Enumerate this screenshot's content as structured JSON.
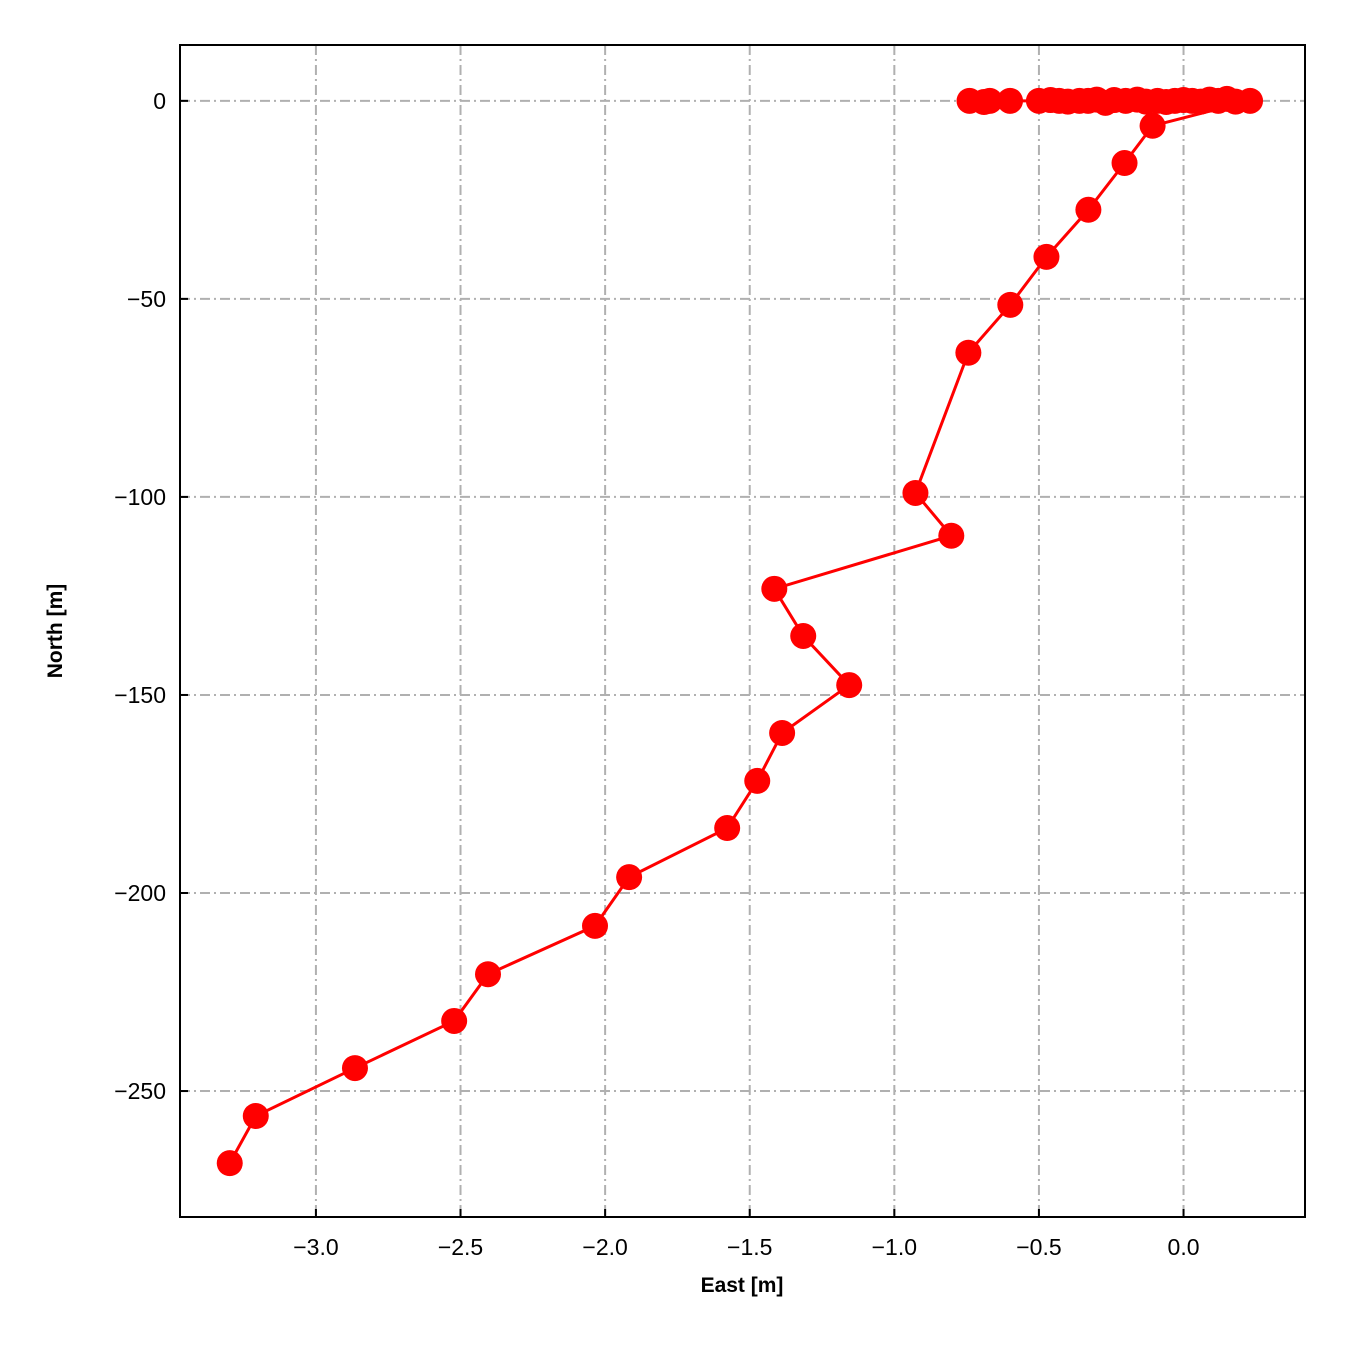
{
  "chart_data": {
    "type": "line",
    "x_label": "East [m]",
    "y_label": "North [m]",
    "x": [
      -0.74,
      -0.69,
      -0.67,
      -0.6,
      -0.5,
      -0.46,
      -0.43,
      -0.4,
      -0.36,
      -0.33,
      -0.3,
      -0.27,
      -0.24,
      -0.2,
      -0.16,
      -0.13,
      -0.09,
      -0.06,
      -0.03,
      0.0,
      0.03,
      0.06,
      0.09,
      0.12,
      0.15,
      0.18,
      0.23,
      -0.107,
      -0.204,
      -0.329,
      -0.474,
      -0.599,
      -0.744,
      -0.927,
      -0.803,
      -1.415,
      -1.315,
      -1.156,
      -1.388,
      -1.474,
      -1.578,
      -1.917,
      -2.035,
      -2.405,
      -2.522,
      -2.865,
      -3.208,
      -3.298
    ],
    "values": [
      0,
      -0.3,
      0,
      0,
      0,
      0.2,
      0,
      -0.2,
      0,
      0,
      0.3,
      -0.5,
      0.2,
      0,
      0.3,
      -0.2,
      0,
      -0.3,
      0,
      0.2,
      0,
      -0.2,
      0.3,
      0,
      0.5,
      -0.2,
      0,
      -6.3,
      -15.7,
      -27.5,
      -39.4,
      -51.5,
      -63.6,
      -99.0,
      -109.8,
      -123.2,
      -135.1,
      -147.5,
      -159.6,
      -171.7,
      -183.6,
      -196.0,
      -208.3,
      -220.5,
      -232.3,
      -244.2,
      -256.3,
      -268.2
    ],
    "color": "#ff0000",
    "xlim": [
      -3.47,
      0.42
    ],
    "ylim": [
      -281.8,
      14.1
    ],
    "xticks": [
      {
        "value": -3.0,
        "label": "−3.0"
      },
      {
        "value": -2.5,
        "label": "−2.5"
      },
      {
        "value": -2.0,
        "label": "−2.0"
      },
      {
        "value": -1.5,
        "label": "−1.5"
      },
      {
        "value": -1.0,
        "label": "−1.0"
      },
      {
        "value": -0.5,
        "label": "−0.5"
      },
      {
        "value": 0.0,
        "label": "0.0"
      }
    ],
    "yticks": [
      0,
      {
        "value": -50,
        "label": "−50"
      },
      {
        "value": -100,
        "label": "−100"
      },
      {
        "value": -150,
        "label": "−150"
      },
      {
        "value": -200,
        "label": "−200"
      },
      {
        "value": -250,
        "label": "−250"
      }
    ],
    "grid": true
  }
}
